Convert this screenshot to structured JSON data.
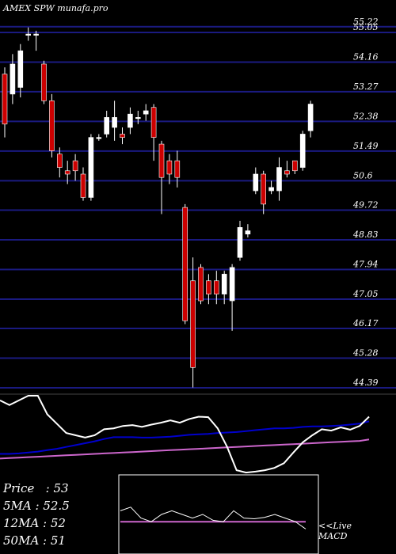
{
  "header": {
    "title": "AMEX  SPW munafa.pro"
  },
  "stats": [
    {
      "label": "Price",
      "value": "53"
    },
    {
      "label": "5MA",
      "value": "52.5"
    },
    {
      "label": "12MA",
      "value": "52"
    },
    {
      "label": "50MA",
      "value": "51"
    }
  ],
  "macd": {
    "label1": "<<Live",
    "label2": "MACD"
  },
  "colors": {
    "up": "#ffffff",
    "down": "#cc0000",
    "grid": "#1a1a80",
    "ma_blue": "#0000cc",
    "ma_violet": "#cc66cc"
  },
  "chart_data": {
    "type": "candlestick",
    "y_ticks": [
      55.22,
      55.05,
      54.16,
      53.27,
      52.38,
      51.49,
      50.6,
      49.72,
      48.83,
      47.94,
      47.05,
      46.17,
      45.28,
      44.39
    ],
    "ylim": [
      44.2,
      55.5
    ],
    "candles": [
      {
        "o": 53.8,
        "c": 52.3,
        "h": 54.0,
        "l": 51.9
      },
      {
        "o": 53.2,
        "c": 54.1,
        "h": 54.4,
        "l": 52.9
      },
      {
        "o": 53.4,
        "c": 54.5,
        "h": 54.7,
        "l": 53.1
      },
      {
        "o": 55.0,
        "c": 55.0,
        "h": 55.2,
        "l": 54.8
      },
      {
        "o": 55.0,
        "c": 55.0,
        "h": 55.1,
        "l": 54.5
      },
      {
        "o": 54.1,
        "c": 53.0,
        "h": 54.2,
        "l": 52.9
      },
      {
        "o": 53.0,
        "c": 51.5,
        "h": 53.2,
        "l": 51.3
      },
      {
        "o": 51.4,
        "c": 51.0,
        "h": 51.6,
        "l": 50.7
      },
      {
        "o": 50.9,
        "c": 50.8,
        "h": 51.2,
        "l": 50.5
      },
      {
        "o": 51.2,
        "c": 50.9,
        "h": 51.4,
        "l": 50.6
      },
      {
        "o": 50.8,
        "c": 50.1,
        "h": 51.0,
        "l": 50.0
      },
      {
        "o": 50.1,
        "c": 51.9,
        "h": 52.0,
        "l": 50.0
      },
      {
        "o": 51.9,
        "c": 51.9,
        "h": 52.0,
        "l": 51.8
      },
      {
        "o": 52.0,
        "c": 52.5,
        "h": 52.7,
        "l": 51.9
      },
      {
        "o": 52.2,
        "c": 52.5,
        "h": 53.0,
        "l": 51.8
      },
      {
        "o": 52.0,
        "c": 51.9,
        "h": 52.2,
        "l": 51.7
      },
      {
        "o": 52.2,
        "c": 52.6,
        "h": 52.8,
        "l": 52.0
      },
      {
        "o": 52.5,
        "c": 52.5,
        "h": 52.7,
        "l": 52.3
      },
      {
        "o": 52.6,
        "c": 52.7,
        "h": 52.9,
        "l": 52.4
      },
      {
        "o": 52.8,
        "c": 51.9,
        "h": 52.9,
        "l": 51.2
      },
      {
        "o": 51.7,
        "c": 50.7,
        "h": 51.8,
        "l": 49.6
      },
      {
        "o": 51.2,
        "c": 50.8,
        "h": 51.4,
        "l": 50.5
      },
      {
        "o": 51.2,
        "c": 50.7,
        "h": 51.5,
        "l": 50.4
      },
      {
        "o": 49.8,
        "c": 46.4,
        "h": 49.9,
        "l": 46.3
      },
      {
        "o": 47.6,
        "c": 45.0,
        "h": 48.3,
        "l": 44.4
      },
      {
        "o": 48.0,
        "c": 47.0,
        "h": 48.1,
        "l": 46.9
      },
      {
        "o": 47.6,
        "c": 47.2,
        "h": 47.8,
        "l": 46.9
      },
      {
        "o": 47.6,
        "c": 47.2,
        "h": 47.9,
        "l": 46.9
      },
      {
        "o": 47.2,
        "c": 47.8,
        "h": 47.9,
        "l": 46.9
      },
      {
        "o": 47.0,
        "c": 48.0,
        "h": 48.1,
        "l": 46.1
      },
      {
        "o": 48.3,
        "c": 49.2,
        "h": 49.4,
        "l": 48.2
      },
      {
        "o": 49.0,
        "c": 49.1,
        "h": 49.3,
        "l": 48.9
      },
      {
        "o": 50.3,
        "c": 50.8,
        "h": 51.0,
        "l": 50.2
      },
      {
        "o": 50.8,
        "c": 49.9,
        "h": 50.9,
        "l": 49.6
      },
      {
        "o": 50.3,
        "c": 50.4,
        "h": 50.6,
        "l": 50.2
      },
      {
        "o": 50.3,
        "c": 51.0,
        "h": 51.3,
        "l": 50.0
      },
      {
        "o": 50.9,
        "c": 50.8,
        "h": 51.2,
        "l": 50.7
      },
      {
        "o": 51.2,
        "c": 50.9,
        "h": 51.2,
        "l": 50.8
      },
      {
        "o": 51.0,
        "c": 52.0,
        "h": 52.1,
        "l": 50.9
      },
      {
        "o": 52.1,
        "c": 52.9,
        "h": 53.0,
        "l": 51.9
      }
    ],
    "indicator": {
      "white_line": [
        0.1,
        0.2,
        0.1,
        0.0,
        0.0,
        0.4,
        0.6,
        0.8,
        0.85,
        0.9,
        0.85,
        0.72,
        0.7,
        0.65,
        0.63,
        0.67,
        0.62,
        0.58,
        0.53,
        0.58,
        0.5,
        0.45,
        0.46,
        0.7,
        1.1,
        1.6,
        1.65,
        1.63,
        1.6,
        1.55,
        1.45,
        1.22,
        1.0,
        0.85,
        0.72,
        0.75,
        0.68,
        0.73,
        0.65,
        0.45
      ],
      "blue_line": [
        1.25,
        1.25,
        1.24,
        1.22,
        1.2,
        1.17,
        1.14,
        1.1,
        1.06,
        1.02,
        0.98,
        0.93,
        0.89,
        0.89,
        0.89,
        0.9,
        0.9,
        0.89,
        0.88,
        0.86,
        0.84,
        0.83,
        0.82,
        0.8,
        0.79,
        0.78,
        0.76,
        0.74,
        0.72,
        0.7,
        0.7,
        0.69,
        0.67,
        0.66,
        0.66,
        0.65,
        0.64,
        0.62,
        0.6,
        0.55
      ],
      "violet_line": [
        1.35,
        1.34,
        1.33,
        1.32,
        1.31,
        1.3,
        1.29,
        1.28,
        1.27,
        1.26,
        1.25,
        1.24,
        1.23,
        1.22,
        1.21,
        1.2,
        1.19,
        1.18,
        1.17,
        1.16,
        1.15,
        1.14,
        1.13,
        1.12,
        1.11,
        1.1,
        1.09,
        1.08,
        1.07,
        1.06,
        1.05,
        1.04,
        1.03,
        1.02,
        1.01,
        1.0,
        0.99,
        0.98,
        0.97,
        0.94
      ],
      "range": [
        0,
        1.7
      ]
    },
    "macd_inset": {
      "white_line": [
        0.55,
        0.6,
        0.45,
        0.4,
        0.5,
        0.55,
        0.5,
        0.45,
        0.5,
        0.42,
        0.4,
        0.55,
        0.45,
        0.44,
        0.46,
        0.5,
        0.45,
        0.4,
        0.3
      ],
      "violet_line": [
        0.4,
        0.4,
        0.4,
        0.4,
        0.4,
        0.4,
        0.4,
        0.4,
        0.4,
        0.4,
        0.4,
        0.4,
        0.4,
        0.4,
        0.4,
        0.4,
        0.4,
        0.4,
        0.4
      ],
      "range": [
        0,
        1
      ]
    }
  }
}
